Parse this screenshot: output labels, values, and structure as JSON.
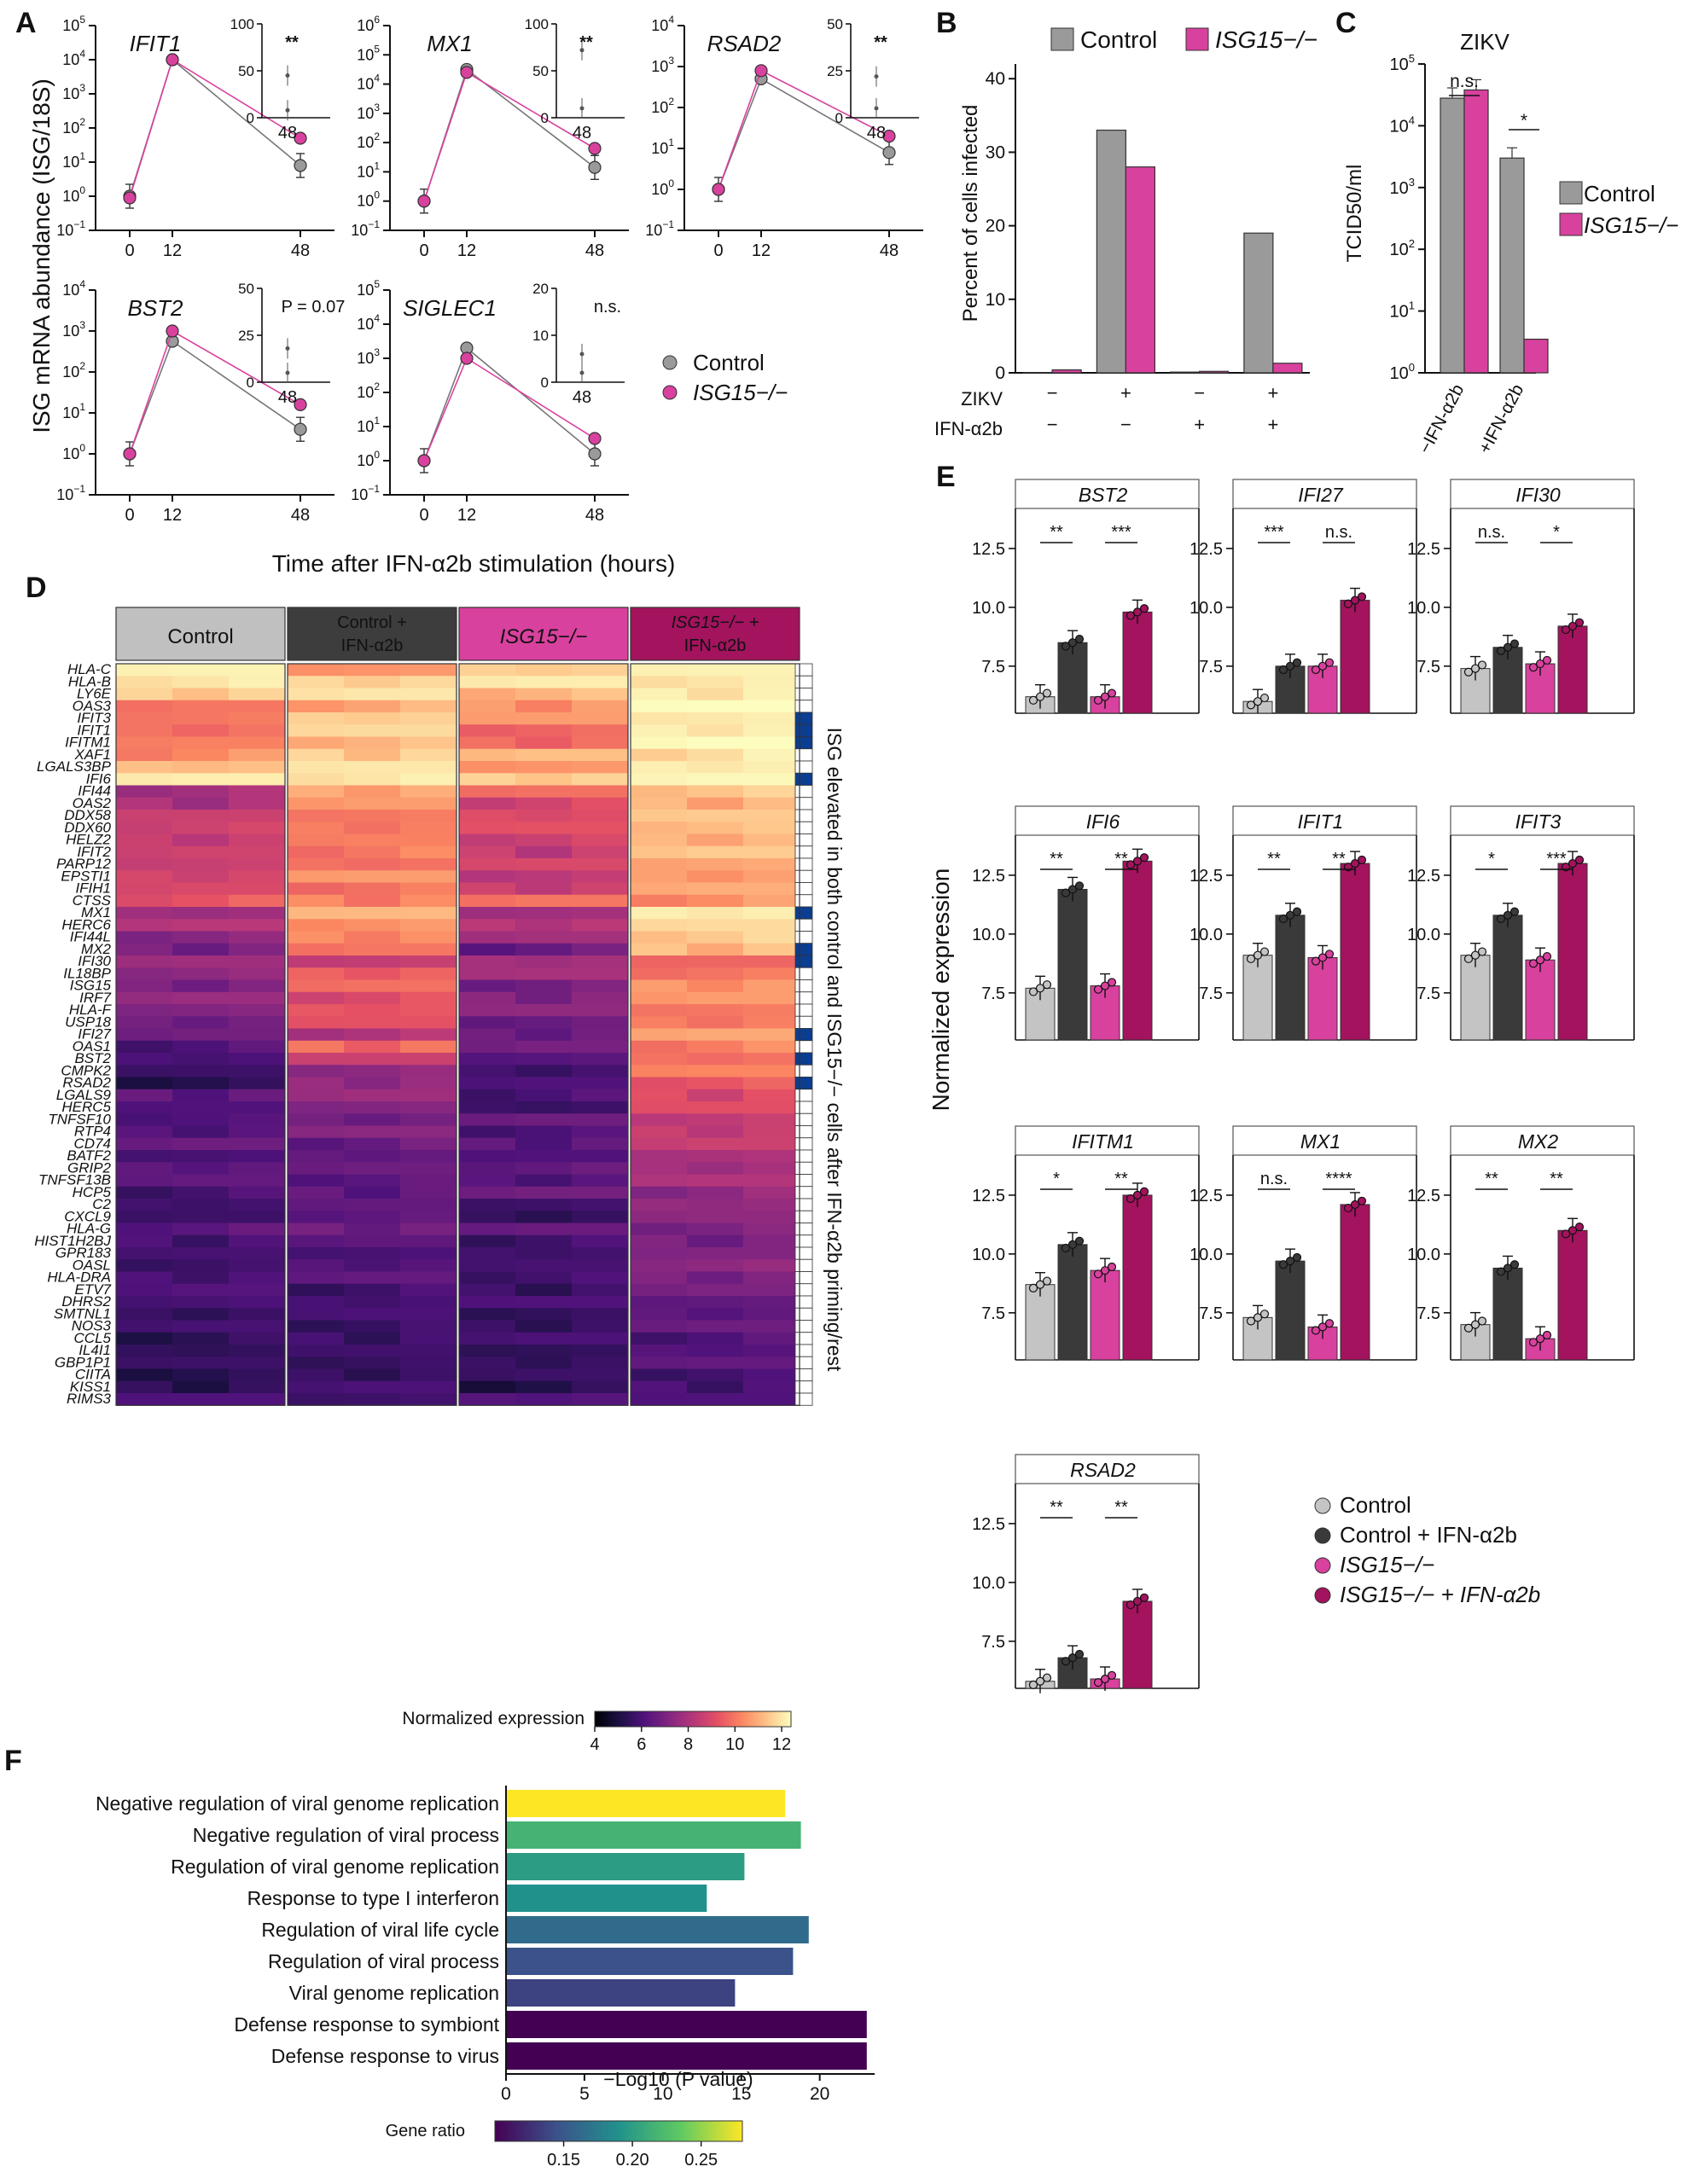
{
  "colors": {
    "control": "#9a9a9a",
    "ko": "#d9419e",
    "control_ifn": "#3a3a3a",
    "ko_ifn": "#a3135e",
    "control_light": "#c4c4c4"
  },
  "panel_letters": [
    "A",
    "B",
    "C",
    "D",
    "E",
    "F"
  ],
  "panel_a": {
    "ylabel": "ISG mRNA abundance (ISG/18S)",
    "xlabel": "Time after IFN-α2b stimulation (hours)",
    "legend": [
      "Control",
      "ISG15−/−"
    ],
    "x_ticks": [
      "0",
      "12",
      "48"
    ],
    "subplots": [
      {
        "gene": "IFIT1",
        "ymax_exp": 5,
        "control": [
          0.0,
          4.0,
          0.9
        ],
        "ko": [
          -0.05,
          4.0,
          1.7
        ],
        "inset_max": 100,
        "inset_mid": 50,
        "inset_sig": "**",
        "inset_control": 8,
        "inset_ko": 45
      },
      {
        "gene": "MX1",
        "ymax_exp": 6,
        "control": [
          0.0,
          4.5,
          1.15
        ],
        "ko": [
          0.0,
          4.4,
          1.8
        ],
        "inset_max": 100,
        "inset_mid": 50,
        "inset_sig": "**",
        "inset_control": 10,
        "inset_ko": 72
      },
      {
        "gene": "RSAD2",
        "ymax_exp": 4,
        "control": [
          0.0,
          2.7,
          0.9
        ],
        "ko": [
          0.0,
          2.9,
          1.3
        ],
        "inset_max": 50,
        "inset_mid": 25,
        "inset_sig": "**",
        "inset_control": 5,
        "inset_ko": 22
      },
      {
        "gene": "BST2",
        "ymax_exp": 4,
        "control": [
          0.0,
          2.75,
          0.6
        ],
        "ko": [
          0.0,
          3.0,
          1.2
        ],
        "inset_max": 50,
        "inset_mid": 25,
        "inset_sig": "P = 0.07",
        "inset_control": 5,
        "inset_ko": 18
      },
      {
        "gene": "SIGLEC1",
        "ymax_exp": 5,
        "control": [
          0.0,
          3.3,
          0.2
        ],
        "ko": [
          0.0,
          3.0,
          0.65
        ],
        "inset_max": 20,
        "inset_mid": 10,
        "inset_sig": "n.s.",
        "inset_control": 2,
        "inset_ko": 6
      }
    ]
  },
  "panel_b": {
    "ylabel": "Percent of cells infected",
    "legend": [
      "Control",
      "ISG15−/−"
    ],
    "yticks": [
      "0",
      "10",
      "20",
      "30",
      "40"
    ],
    "row_labels": [
      "ZIKV",
      "IFN-α2b"
    ],
    "zikv": [
      "−",
      "+",
      "−",
      "+"
    ],
    "ifn": [
      "−",
      "−",
      "+",
      "+"
    ],
    "chart_data": {
      "type": "bar",
      "categories": [
        "ZIKV− IFN−",
        "ZIKV+ IFN−",
        "ZIKV− IFN+",
        "ZIKV+ IFN+"
      ],
      "series": [
        {
          "name": "Control",
          "values": [
            0.0,
            33.0,
            0.1,
            19.0
          ]
        },
        {
          "name": "ISG15−/−",
          "values": [
            0.4,
            28.0,
            0.2,
            1.3
          ]
        }
      ],
      "ylim": [
        0,
        42
      ]
    }
  },
  "panel_c": {
    "title": "ZIKV",
    "ylabel": "TCID50/ml",
    "legend": [
      "Control",
      "ISG15−/−"
    ],
    "categories": [
      "−IFN-α2b",
      "+IFN-α2b"
    ],
    "sig": [
      "n.s.",
      "*"
    ],
    "chart_data": {
      "type": "bar",
      "scale": "log",
      "categories": [
        "−IFN-α2b",
        "+IFN-α2b"
      ],
      "series": [
        {
          "name": "Control",
          "values": [
            28000,
            3000
          ]
        },
        {
          "name": "ISG15−/−",
          "values": [
            38000,
            3.5
          ]
        }
      ],
      "ylim": [
        1,
        100000
      ]
    }
  },
  "panel_d": {
    "columns": [
      "Control",
      "Control + IFN-α2b",
      "ISG15−/−",
      "ISG15−/− + IFN-α2b"
    ],
    "colorbar_label": "Normalized expression",
    "colorbar_ticks": [
      "4",
      "6",
      "8",
      "10",
      "12"
    ],
    "side_text": "ISG elevated in both control and ISG15−/− cells after IFN-α2b priming/rest",
    "genes": [
      "HLA-C",
      "HLA-B",
      "LY6E",
      "OAS3",
      "IFIT3",
      "IFIT1",
      "IFITM1",
      "XAF1",
      "LGALS3BP",
      "IFI6",
      "IFI44",
      "OAS2",
      "DDX58",
      "DDX60",
      "HELZ2",
      "IFIT2",
      "PARP12",
      "EPSTI1",
      "IFIH1",
      "CTSS",
      "MX1",
      "HERC6",
      "IFI44L",
      "MX2",
      "IFI30",
      "IL18BP",
      "ISG15",
      "IRF7",
      "HLA-F",
      "USP18",
      "IFI27",
      "OAS1",
      "BST2",
      "CMPK2",
      "RSAD2",
      "LGALS9",
      "HERC5",
      "TNFSF10",
      "RTP4",
      "CD74",
      "BATF2",
      "GRIP2",
      "TNFSF13B",
      "HCP5",
      "C2",
      "CXCL9",
      "HLA-G",
      "HIST1H2BJ",
      "GPR183",
      "OASL",
      "HLA-DRA",
      "ETV7",
      "DHRS2",
      "SMTNL1",
      "NOS3",
      "CCL5",
      "IL4I1",
      "GBP1P1",
      "CIITA",
      "KISS1",
      "RIMS3"
    ],
    "elevated": [
      0,
      0,
      0,
      0,
      1,
      1,
      1,
      0,
      0,
      1,
      0,
      0,
      0,
      0,
      0,
      0,
      0,
      0,
      0,
      0,
      1,
      0,
      0,
      1,
      1,
      0,
      0,
      0,
      0,
      0,
      1,
      0,
      1,
      0,
      1,
      0,
      0,
      0,
      0,
      0,
      0,
      0,
      0,
      0,
      0,
      0,
      0,
      0,
      0,
      0,
      0,
      0,
      0,
      0,
      0,
      0,
      0,
      0,
      0,
      0,
      0
    ],
    "group_means": [
      [
        12,
        10.5,
        11.5,
        12
      ],
      [
        12,
        11.6,
        11.8,
        12
      ],
      [
        11.5,
        11.6,
        11.2,
        12
      ],
      [
        9.5,
        11,
        10.5,
        12
      ],
      [
        10,
        11.5,
        10.5,
        12
      ],
      [
        9.8,
        11.5,
        9.7,
        12
      ],
      [
        9.8,
        11.2,
        9.7,
        12
      ],
      [
        10.5,
        11.5,
        10.8,
        12
      ],
      [
        11.2,
        11.8,
        10.5,
        12
      ],
      [
        11.8,
        12,
        11.5,
        12
      ],
      [
        8,
        10.8,
        9.5,
        11.5
      ],
      [
        8,
        10.2,
        9,
        11
      ],
      [
        8.5,
        10,
        9,
        11.3
      ],
      [
        8.8,
        10,
        9,
        11.3
      ],
      [
        8.5,
        9.8,
        8.8,
        11
      ],
      [
        8.3,
        10.2,
        8.5,
        11
      ],
      [
        8.6,
        9.8,
        8.8,
        10.8
      ],
      [
        8.8,
        10.4,
        8.4,
        10.6
      ],
      [
        8.6,
        10,
        8.6,
        10.6
      ],
      [
        9.5,
        10.2,
        9.5,
        10.6
      ],
      [
        7.7,
        11,
        7.8,
        12
      ],
      [
        8,
        10.5,
        8.2,
        11.5
      ],
      [
        7.4,
        10.3,
        7.5,
        11.6
      ],
      [
        7,
        9.5,
        6.8,
        11.2
      ],
      [
        7.6,
        8.5,
        7.8,
        9.5
      ],
      [
        7.5,
        9.5,
        7.7,
        10
      ],
      [
        7,
        9.5,
        7,
        10.5
      ],
      [
        7.2,
        9.2,
        7.2,
        10.2
      ],
      [
        7.2,
        9.3,
        7.3,
        10
      ],
      [
        6.8,
        9,
        6.7,
        10
      ],
      [
        6.5,
        8.2,
        6.7,
        10.5
      ],
      [
        6.3,
        9.8,
        6.5,
        10.3
      ],
      [
        6,
        8.5,
        6.3,
        9.8
      ],
      [
        5.5,
        7.5,
        5.8,
        10
      ],
      [
        5.4,
        7.5,
        5.8,
        9.5
      ],
      [
        6.5,
        7.3,
        6.2,
        9
      ],
      [
        6,
        7.2,
        5.7,
        9
      ],
      [
        6.2,
        6.8,
        6.5,
        8.5
      ],
      [
        6.2,
        7,
        6.2,
        8.5
      ],
      [
        6.3,
        6.8,
        6.4,
        8.2
      ],
      [
        6,
        6.5,
        6,
        8
      ],
      [
        6.4,
        6.5,
        6.6,
        7.8
      ],
      [
        6.2,
        6.5,
        6.2,
        7.8
      ],
      [
        6.1,
        6.5,
        6.4,
        7.6
      ],
      [
        5.8,
        6.4,
        5.8,
        7.5
      ],
      [
        5.5,
        6.5,
        5.5,
        7.2
      ],
      [
        6.5,
        6.8,
        6.3,
        7.2
      ],
      [
        6,
        6,
        6,
        7
      ],
      [
        5.8,
        6,
        5.8,
        7
      ],
      [
        5.8,
        6.2,
        5.7,
        7.5
      ],
      [
        6,
        6.2,
        6,
        7
      ],
      [
        5.8,
        6,
        5.7,
        6.6
      ],
      [
        6,
        5.9,
        6,
        6.5
      ],
      [
        5.6,
        5.8,
        5.6,
        6.4
      ],
      [
        5.6,
        5.8,
        5.6,
        6.4
      ],
      [
        5.6,
        5.8,
        5.6,
        6.3
      ],
      [
        5.5,
        5.7,
        5.5,
        6.2
      ],
      [
        5.5,
        5.7,
        5.6,
        6.3
      ],
      [
        5.4,
        5.6,
        5.4,
        6
      ],
      [
        5.4,
        5.6,
        5.4,
        6
      ],
      [
        6,
        5.8,
        6.2,
        6
      ]
    ]
  },
  "panel_e": {
    "ylabel": "Normalized expression",
    "yticks": [
      "7.5",
      "10.0",
      "12.5"
    ],
    "legend": [
      "Control",
      "Control + IFN-α2b",
      "ISG15−/−",
      "ISG15−/− + IFN-α2b"
    ],
    "chart_data": [
      {
        "gene": "BST2",
        "type": "bar",
        "values": [
          6.2,
          8.5,
          6.2,
          9.8
        ],
        "sig": [
          "**",
          "***"
        ]
      },
      {
        "gene": "IFI27",
        "type": "bar",
        "values": [
          6,
          7.5,
          7.5,
          10.3
        ],
        "sig": [
          "***",
          "n.s."
        ]
      },
      {
        "gene": "IFI30",
        "type": "bar",
        "values": [
          7.4,
          8.3,
          7.6,
          9.2
        ],
        "sig": [
          "n.s.",
          "*"
        ]
      },
      {
        "gene": "IFI6",
        "type": "bar",
        "values": [
          7.7,
          11.9,
          7.8,
          13.1
        ],
        "sig": [
          "**",
          "**"
        ]
      },
      {
        "gene": "IFIT1",
        "type": "bar",
        "values": [
          9.1,
          10.8,
          9,
          13
        ],
        "sig": [
          "**",
          "**"
        ]
      },
      {
        "gene": "IFIT3",
        "type": "bar",
        "values": [
          9.1,
          10.8,
          8.9,
          13
        ],
        "sig": [
          "*",
          "***"
        ]
      },
      {
        "gene": "IFITM1",
        "type": "bar",
        "values": [
          8.7,
          10.4,
          9.3,
          12.5
        ],
        "sig": [
          "*",
          "**"
        ]
      },
      {
        "gene": "MX1",
        "type": "bar",
        "values": [
          7.3,
          9.7,
          6.9,
          12.1
        ],
        "sig": [
          "n.s.",
          "****"
        ]
      },
      {
        "gene": "MX2",
        "type": "bar",
        "values": [
          7,
          9.4,
          6.4,
          11
        ],
        "sig": [
          "**",
          "**"
        ]
      },
      {
        "gene": "RSAD2",
        "type": "bar",
        "values": [
          5.8,
          6.8,
          5.9,
          9.2
        ],
        "sig": [
          "**",
          "**"
        ]
      }
    ]
  },
  "panel_f": {
    "xlabel": "−Log10 (P value)",
    "xticks": [
      "0",
      "5",
      "10",
      "15",
      "20"
    ],
    "colorbar_label": "Gene ratio",
    "colorbar_ticks": [
      "0.15",
      "0.20",
      "0.25"
    ],
    "chart_data": {
      "type": "bar",
      "orientation": "horizontal",
      "categories": [
        "Negative regulation of viral genome replication",
        "Negative regulation of viral process",
        "Regulation of viral genome replication",
        "Response to type I interferon",
        "Regulation of viral life cycle",
        "Regulation of viral process",
        "Viral genome replication",
        "Defense response to symbiont",
        "Defense response to virus"
      ],
      "values": [
        17.8,
        18.8,
        15.2,
        12.8,
        19.3,
        18.3,
        14.6,
        23.0,
        23.0
      ],
      "gene_ratio": [
        0.28,
        0.21,
        0.19,
        0.18,
        0.15,
        0.13,
        0.12,
        0.08,
        0.08
      ],
      "xlim": [
        0,
        23.5
      ]
    }
  }
}
